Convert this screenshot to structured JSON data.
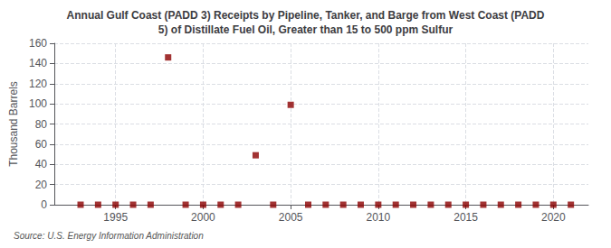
{
  "chart_data": {
    "type": "scatter",
    "title": "Annual Gulf Coast (PADD 3) Receipts by Pipeline, Tanker, and Barge from West Coast (PADD\n5) of Distillate Fuel Oil, Greater than 15 to 500 ppm Sulfur",
    "ylabel": "Thousand Barrels",
    "annotation": "Source: U.S. Energy Information Administration",
    "x": [
      1993,
      1994,
      1995,
      1996,
      1997,
      1998,
      1999,
      2000,
      2001,
      2002,
      2003,
      2004,
      2005,
      2006,
      2007,
      2008,
      2009,
      2010,
      2011,
      2012,
      2013,
      2014,
      2015,
      2016,
      2017,
      2018,
      2019,
      2020,
      2021
    ],
    "values": [
      0,
      0,
      0,
      0,
      0,
      146,
      0,
      0,
      0,
      0,
      49,
      0,
      99,
      0,
      0,
      0,
      0,
      0,
      0,
      0,
      0,
      0,
      0,
      0,
      0,
      0,
      0,
      0,
      0
    ],
    "color": "#8b0000",
    "marker": "square",
    "xlim": [
      1991.5,
      2022
    ],
    "xticks": [
      1995,
      2000,
      2005,
      2010,
      2015,
      2020
    ],
    "ylim": [
      0,
      160
    ],
    "yticks": [
      0,
      20,
      40,
      60,
      80,
      100,
      120,
      140,
      160
    ],
    "grid": true
  }
}
